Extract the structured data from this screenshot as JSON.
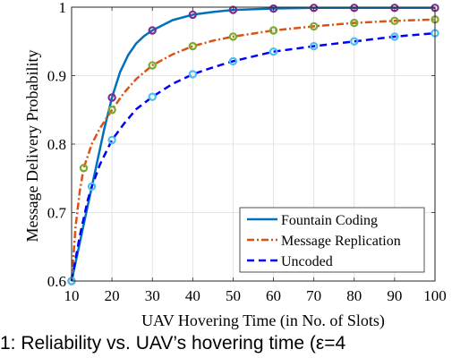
{
  "chart_data": {
    "type": "line",
    "xlabel": "UAV Hovering Time (in No. of Slots)",
    "ylabel": "Message Delivery Probability",
    "xlim": [
      10,
      100
    ],
    "ylim": [
      0.6,
      1.0
    ],
    "xticks": [
      10,
      20,
      30,
      40,
      50,
      60,
      70,
      80,
      90,
      100
    ],
    "yticks": [
      0.6,
      0.7,
      0.8,
      0.9,
      1.0
    ],
    "ytick_labels": [
      "0.6",
      "0.7",
      "0.8",
      "0.9",
      "1"
    ],
    "grid": true,
    "legend_position": "bottom-right",
    "series": [
      {
        "name": "Fountain Coding",
        "color": "#0072BD",
        "dash": "solid",
        "marker_color": "#7E2F8E",
        "markers": [
          {
            "x": 10,
            "y": 0.6
          },
          {
            "x": 20,
            "y": 0.868
          },
          {
            "x": 30,
            "y": 0.966
          },
          {
            "x": 40,
            "y": 0.989
          },
          {
            "x": 50,
            "y": 0.996
          },
          {
            "x": 60,
            "y": 0.998
          },
          {
            "x": 70,
            "y": 0.999
          },
          {
            "x": 80,
            "y": 0.999
          },
          {
            "x": 90,
            "y": 0.999
          },
          {
            "x": 100,
            "y": 0.999
          }
        ],
        "curve": [
          {
            "x": 10,
            "y": 0.6
          },
          {
            "x": 12,
            "y": 0.655
          },
          {
            "x": 14,
            "y": 0.71
          },
          {
            "x": 16,
            "y": 0.765
          },
          {
            "x": 18,
            "y": 0.82
          },
          {
            "x": 20,
            "y": 0.868
          },
          {
            "x": 22,
            "y": 0.905
          },
          {
            "x": 24,
            "y": 0.93
          },
          {
            "x": 26,
            "y": 0.947
          },
          {
            "x": 28,
            "y": 0.958
          },
          {
            "x": 30,
            "y": 0.966
          },
          {
            "x": 35,
            "y": 0.981
          },
          {
            "x": 40,
            "y": 0.989
          },
          {
            "x": 45,
            "y": 0.993
          },
          {
            "x": 50,
            "y": 0.996
          },
          {
            "x": 60,
            "y": 0.998
          },
          {
            "x": 70,
            "y": 0.999
          },
          {
            "x": 80,
            "y": 0.999
          },
          {
            "x": 90,
            "y": 0.999
          },
          {
            "x": 100,
            "y": 0.999
          }
        ]
      },
      {
        "name": "Message Replication",
        "color": "#D95319",
        "dash": "dashdot",
        "marker_color": "#77AC30",
        "markers": [
          {
            "x": 10,
            "y": 0.6
          },
          {
            "x": 13,
            "y": 0.765
          },
          {
            "x": 20,
            "y": 0.85
          },
          {
            "x": 30,
            "y": 0.915
          },
          {
            "x": 40,
            "y": 0.943
          },
          {
            "x": 50,
            "y": 0.957
          },
          {
            "x": 60,
            "y": 0.966
          },
          {
            "x": 70,
            "y": 0.972
          },
          {
            "x": 80,
            "y": 0.977
          },
          {
            "x": 90,
            "y": 0.98
          },
          {
            "x": 100,
            "y": 0.982
          }
        ],
        "curve": [
          {
            "x": 10,
            "y": 0.6
          },
          {
            "x": 11,
            "y": 0.68
          },
          {
            "x": 12,
            "y": 0.73
          },
          {
            "x": 13,
            "y": 0.765
          },
          {
            "x": 15,
            "y": 0.8
          },
          {
            "x": 17,
            "y": 0.823
          },
          {
            "x": 20,
            "y": 0.85
          },
          {
            "x": 23,
            "y": 0.875
          },
          {
            "x": 26,
            "y": 0.895
          },
          {
            "x": 30,
            "y": 0.915
          },
          {
            "x": 35,
            "y": 0.931
          },
          {
            "x": 40,
            "y": 0.943
          },
          {
            "x": 45,
            "y": 0.951
          },
          {
            "x": 50,
            "y": 0.957
          },
          {
            "x": 60,
            "y": 0.966
          },
          {
            "x": 70,
            "y": 0.972
          },
          {
            "x": 80,
            "y": 0.977
          },
          {
            "x": 90,
            "y": 0.98
          },
          {
            "x": 100,
            "y": 0.982
          }
        ]
      },
      {
        "name": "Uncoded",
        "color": "#0000FF",
        "dash": "dashed",
        "marker_color": "#4DBEEE",
        "markers": [
          {
            "x": 10,
            "y": 0.6
          },
          {
            "x": 15,
            "y": 0.738
          },
          {
            "x": 20,
            "y": 0.806
          },
          {
            "x": 30,
            "y": 0.869
          },
          {
            "x": 40,
            "y": 0.902
          },
          {
            "x": 50,
            "y": 0.921
          },
          {
            "x": 60,
            "y": 0.935
          },
          {
            "x": 70,
            "y": 0.943
          },
          {
            "x": 80,
            "y": 0.95
          },
          {
            "x": 90,
            "y": 0.957
          },
          {
            "x": 100,
            "y": 0.962
          }
        ],
        "curve": [
          {
            "x": 10,
            "y": 0.6
          },
          {
            "x": 12,
            "y": 0.665
          },
          {
            "x": 14,
            "y": 0.718
          },
          {
            "x": 15,
            "y": 0.738
          },
          {
            "x": 17,
            "y": 0.77
          },
          {
            "x": 20,
            "y": 0.806
          },
          {
            "x": 23,
            "y": 0.83
          },
          {
            "x": 26,
            "y": 0.851
          },
          {
            "x": 30,
            "y": 0.869
          },
          {
            "x": 35,
            "y": 0.888
          },
          {
            "x": 40,
            "y": 0.902
          },
          {
            "x": 45,
            "y": 0.912
          },
          {
            "x": 50,
            "y": 0.921
          },
          {
            "x": 60,
            "y": 0.935
          },
          {
            "x": 70,
            "y": 0.943
          },
          {
            "x": 80,
            "y": 0.95
          },
          {
            "x": 90,
            "y": 0.957
          },
          {
            "x": 100,
            "y": 0.962
          }
        ]
      }
    ]
  },
  "caption": {
    "text": "1: Reliability vs. UAV’s hovering time (ε=4"
  }
}
